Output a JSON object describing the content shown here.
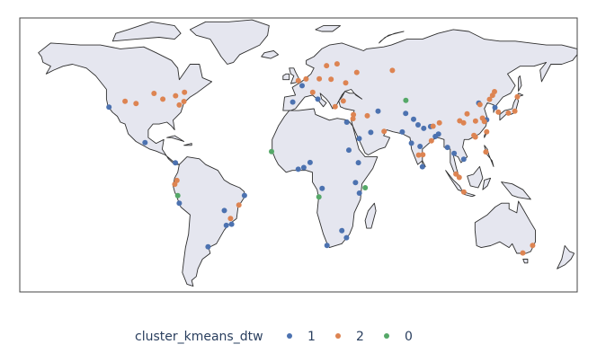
{
  "chart_data": {
    "type": "scatter",
    "subtype": "geo-scatter",
    "projection": "equirectangular",
    "lonlim": [
      -180,
      180
    ],
    "latlim": [
      -58,
      84
    ],
    "legend": {
      "title": "cluster_kmeans_dtw",
      "placement": "bottom-center",
      "orientation": "horizontal",
      "entries": [
        "1",
        "2",
        "0"
      ]
    },
    "colors": {
      "1": "#4c72b0",
      "2": "#dd8452",
      "0": "#55a868"
    },
    "series": [
      {
        "name": "1",
        "color": "#4c72b0",
        "points": [
          {
            "lon": -122.4,
            "lat": 37.8
          },
          {
            "lon": -99.1,
            "lat": 19.4
          },
          {
            "lon": -79.5,
            "lat": 8.9
          },
          {
            "lon": -77.0,
            "lat": -12.0
          },
          {
            "lon": -58.4,
            "lat": -34.6
          },
          {
            "lon": -46.6,
            "lat": -23.5
          },
          {
            "lon": -43.2,
            "lat": -22.9
          },
          {
            "lon": -47.9,
            "lat": -15.8
          },
          {
            "lon": -34.9,
            "lat": -8.0
          },
          {
            "lon": -3.7,
            "lat": 40.4
          },
          {
            "lon": 2.3,
            "lat": 48.9
          },
          {
            "lon": 12.5,
            "lat": 41.9
          },
          {
            "lon": 31.2,
            "lat": 30.0
          },
          {
            "lon": 3.4,
            "lat": 6.5
          },
          {
            "lon": -0.2,
            "lat": 5.6
          },
          {
            "lon": 7.5,
            "lat": 9.1
          },
          {
            "lon": 15.3,
            "lat": -4.3
          },
          {
            "lon": 18.4,
            "lat": -33.9
          },
          {
            "lon": 28.0,
            "lat": -26.2
          },
          {
            "lon": 31.0,
            "lat": -29.9
          },
          {
            "lon": 36.8,
            "lat": -1.3
          },
          {
            "lon": 38.7,
            "lat": 9.0
          },
          {
            "lon": 32.5,
            "lat": 15.5
          },
          {
            "lon": 39.2,
            "lat": 21.5
          },
          {
            "lon": 46.7,
            "lat": 24.7
          },
          {
            "lon": 51.4,
            "lat": 35.7
          },
          {
            "lon": 69.2,
            "lat": 34.5
          },
          {
            "lon": 74.3,
            "lat": 31.5
          },
          {
            "lon": 77.2,
            "lat": 28.6
          },
          {
            "lon": 80.9,
            "lat": 26.8
          },
          {
            "lon": 72.9,
            "lat": 19.1
          },
          {
            "lon": 78.5,
            "lat": 17.4
          },
          {
            "lon": 85.3,
            "lat": 27.7
          },
          {
            "lon": 88.4,
            "lat": 22.6
          },
          {
            "lon": 90.4,
            "lat": 23.8
          },
          {
            "lon": 100.5,
            "lat": 13.8
          },
          {
            "lon": 106.7,
            "lat": 10.8
          },
          {
            "lon": 116.4,
            "lat": 39.9
          },
          {
            "lon": 126.9,
            "lat": 37.6
          },
          {
            "lon": 121.5,
            "lat": 31.2
          },
          {
            "lon": 96.2,
            "lat": 16.9
          },
          {
            "lon": 39.3,
            "lat": -6.8
          },
          {
            "lon": 67.0,
            "lat": 24.9
          },
          {
            "lon": 80.0,
            "lat": 6.9
          }
        ]
      },
      {
        "name": "2",
        "color": "#dd8452",
        "points": [
          {
            "lon": -112.0,
            "lat": 40.8
          },
          {
            "lon": -104.9,
            "lat": 39.7
          },
          {
            "lon": -93.3,
            "lat": 44.9
          },
          {
            "lon": -87.6,
            "lat": 41.9
          },
          {
            "lon": -79.4,
            "lat": 43.7
          },
          {
            "lon": -73.6,
            "lat": 45.5
          },
          {
            "lon": -74.0,
            "lat": 40.7
          },
          {
            "lon": -77.0,
            "lat": 38.9
          },
          {
            "lon": -78.5,
            "lat": -0.2
          },
          {
            "lon": -79.9,
            "lat": -2.2
          },
          {
            "lon": -43.9,
            "lat": -19.9
          },
          {
            "lon": -38.5,
            "lat": -12.97
          },
          {
            "lon": -0.1,
            "lat": 51.5
          },
          {
            "lon": 4.9,
            "lat": 52.4
          },
          {
            "lon": 9.2,
            "lat": 45.5
          },
          {
            "lon": 13.4,
            "lat": 52.5
          },
          {
            "lon": 21.0,
            "lat": 52.2
          },
          {
            "lon": 18.1,
            "lat": 59.3
          },
          {
            "lon": 24.9,
            "lat": 60.2
          },
          {
            "lon": 37.6,
            "lat": 55.8
          },
          {
            "lon": 30.5,
            "lat": 50.4
          },
          {
            "lon": 28.9,
            "lat": 41.0
          },
          {
            "lon": 23.7,
            "lat": 38.0
          },
          {
            "lon": 35.2,
            "lat": 31.8
          },
          {
            "lon": 35.5,
            "lat": 33.9
          },
          {
            "lon": 44.4,
            "lat": 33.3
          },
          {
            "lon": 55.3,
            "lat": 25.2
          },
          {
            "lon": 60.6,
            "lat": 56.8
          },
          {
            "lon": 86.9,
            "lat": 27.9
          },
          {
            "lon": 91.0,
            "lat": 29.6
          },
          {
            "lon": 103.8,
            "lat": 1.35
          },
          {
            "lon": 101.7,
            "lat": 3.1
          },
          {
            "lon": 106.8,
            "lat": -6.2
          },
          {
            "lon": 114.2,
            "lat": 22.3
          },
          {
            "lon": 113.3,
            "lat": 23.1
          },
          {
            "lon": 121.0,
            "lat": 14.6
          },
          {
            "lon": 120.0,
            "lat": 30.3
          },
          {
            "lon": 118.8,
            "lat": 32.1
          },
          {
            "lon": 117.2,
            "lat": 39.1
          },
          {
            "lon": 123.4,
            "lat": 41.8
          },
          {
            "lon": 125.3,
            "lat": 43.9
          },
          {
            "lon": 126.6,
            "lat": 45.8
          },
          {
            "lon": 129.0,
            "lat": 35.2
          },
          {
            "lon": 139.7,
            "lat": 35.7
          },
          {
            "lon": 135.5,
            "lat": 34.7
          },
          {
            "lon": 141.3,
            "lat": 43.1
          },
          {
            "lon": 104.1,
            "lat": 30.7
          },
          {
            "lon": 108.9,
            "lat": 34.3
          },
          {
            "lon": 151.2,
            "lat": -33.9
          },
          {
            "lon": 144.9,
            "lat": -37.8
          },
          {
            "lon": 121.5,
            "lat": 25.0
          },
          {
            "lon": 106.6,
            "lat": 29.6
          },
          {
            "lon": 114.3,
            "lat": 30.6
          },
          {
            "lon": 80.3,
            "lat": 13.1
          },
          {
            "lon": 77.6,
            "lat": 12.97
          },
          {
            "lon": 85.8,
            "lat": 20.3
          }
        ]
      },
      {
        "name": "0",
        "color": "#55a868",
        "points": [
          {
            "lon": -17.4,
            "lat": 14.7
          },
          {
            "lon": -78.0,
            "lat": -8.1
          },
          {
            "lon": 13.2,
            "lat": -8.8
          },
          {
            "lon": 43.1,
            "lat": -4.0
          },
          {
            "lon": 69.3,
            "lat": 41.3
          }
        ]
      }
    ]
  }
}
